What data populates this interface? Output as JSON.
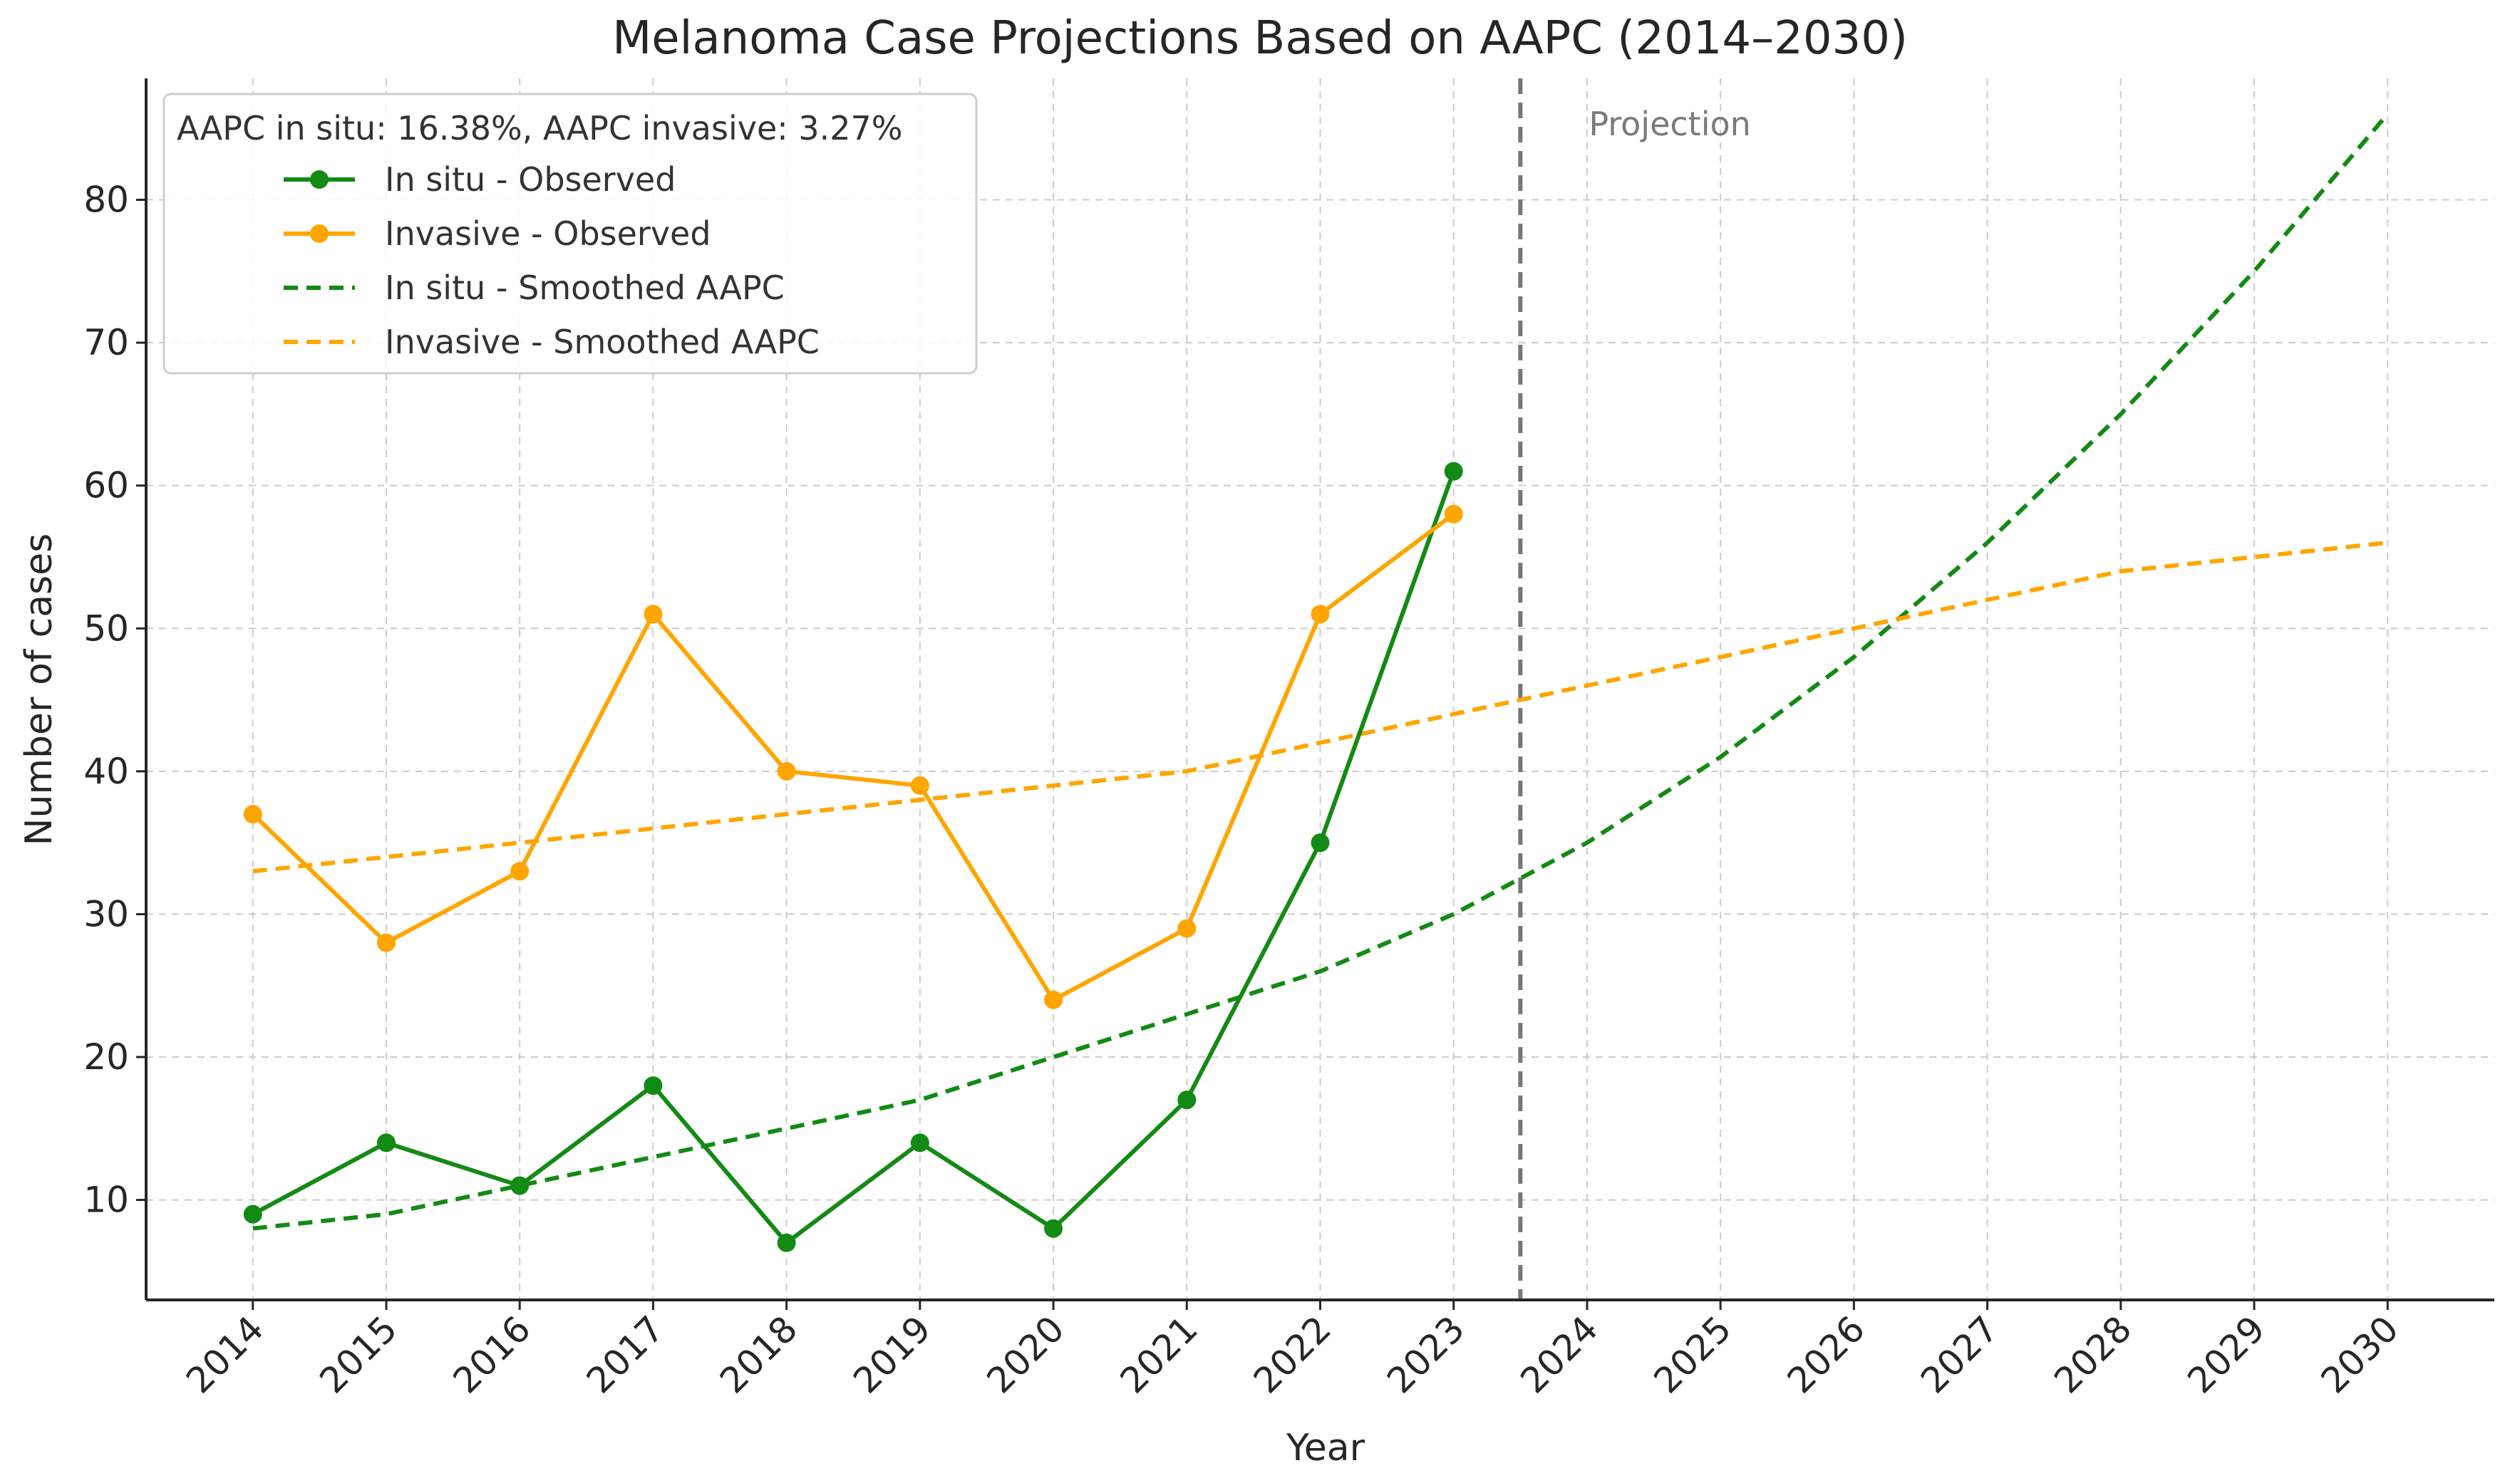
{
  "chart_data": {
    "type": "line",
    "title": "Melanoma Case Projections Based on AAPC (2014–2030)",
    "xlabel": "Year",
    "ylabel": "Number of cases",
    "categories": [
      "2014",
      "2015",
      "2016",
      "2017",
      "2018",
      "2019",
      "2020",
      "2021",
      "2022",
      "2023",
      "2024",
      "2025",
      "2026",
      "2027",
      "2028",
      "2029",
      "2030"
    ],
    "x": [
      2014,
      2015,
      2016,
      2017,
      2018,
      2019,
      2020,
      2021,
      2022,
      2023,
      2024,
      2025,
      2026,
      2027,
      2028,
      2029,
      2030
    ],
    "xlim": [
      2013.2,
      2030.8
    ],
    "ylim": [
      3,
      88.5
    ],
    "yticks": [
      10,
      20,
      30,
      40,
      50,
      60,
      70,
      80
    ],
    "grid": true,
    "series": [
      {
        "name": "In situ - Observed",
        "style": "solid-marker",
        "color": "#138a13",
        "x": [
          2014,
          2015,
          2016,
          2017,
          2018,
          2019,
          2020,
          2021,
          2022,
          2023
        ],
        "values": [
          9,
          14,
          11,
          18,
          7,
          14,
          8,
          17,
          35,
          61
        ]
      },
      {
        "name": "Invasive - Observed",
        "style": "solid-marker",
        "color": "#ffa500",
        "x": [
          2014,
          2015,
          2016,
          2017,
          2018,
          2019,
          2020,
          2021,
          2022,
          2023
        ],
        "values": [
          37,
          28,
          33,
          51,
          40,
          39,
          24,
          29,
          51,
          58
        ]
      },
      {
        "name": "In situ - Smoothed AAPC",
        "style": "dashed",
        "color": "#138a13",
        "x": [
          2014,
          2015,
          2016,
          2017,
          2018,
          2019,
          2020,
          2021,
          2022,
          2023,
          2024,
          2025,
          2026,
          2027,
          2028,
          2029,
          2030
        ],
        "values": [
          8,
          9,
          11,
          13,
          15,
          17,
          20,
          23,
          26,
          30,
          35,
          41,
          48,
          56,
          65,
          75,
          86
        ]
      },
      {
        "name": "Invasive - Smoothed AAPC",
        "style": "dashed",
        "color": "#ffa500",
        "x": [
          2014,
          2015,
          2016,
          2017,
          2018,
          2019,
          2020,
          2021,
          2022,
          2023,
          2024,
          2025,
          2026,
          2027,
          2028,
          2029,
          2030
        ],
        "values": [
          33,
          34,
          35,
          36,
          37,
          38,
          39,
          40,
          42,
          44,
          46,
          48,
          50,
          52,
          54,
          55,
          56
        ]
      }
    ],
    "legend": {
      "title": "AAPC in situ: 16.38%, AAPC invasive: 3.27%",
      "placement": "top-left"
    },
    "projection_line": {
      "x": 2023.5,
      "label": "Projection",
      "color": "#777777"
    }
  }
}
